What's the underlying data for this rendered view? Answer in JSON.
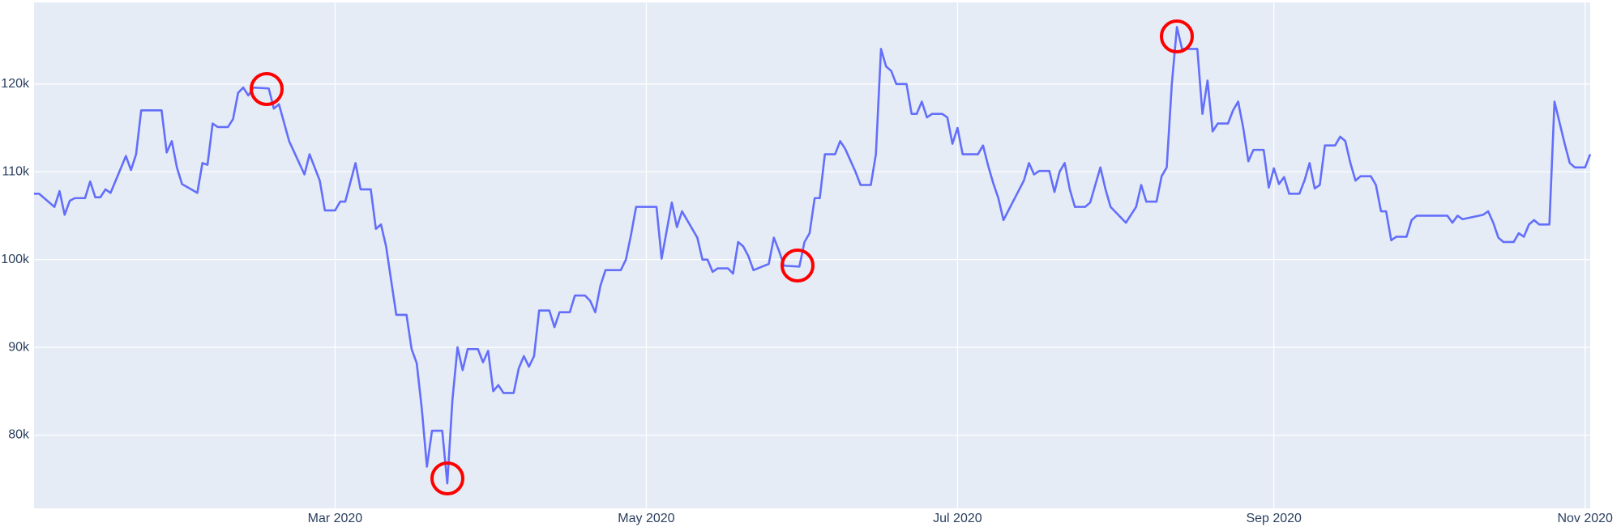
{
  "chart_data": {
    "type": "line",
    "color": "#636efa",
    "grid": true,
    "x": [
      "2020-01-02",
      "2020-01-03",
      "2020-01-06",
      "2020-01-07",
      "2020-01-08",
      "2020-01-09",
      "2020-01-10",
      "2020-01-12",
      "2020-01-13",
      "2020-01-14",
      "2020-01-15",
      "2020-01-16",
      "2020-01-17",
      "2020-01-20",
      "2020-01-21",
      "2020-01-22",
      "2020-01-23",
      "2020-01-27",
      "2020-01-28",
      "2020-01-29",
      "2020-01-30",
      "2020-01-31",
      "2020-02-03",
      "2020-02-04",
      "2020-02-05",
      "2020-02-06",
      "2020-02-07",
      "2020-02-09",
      "2020-02-10",
      "2020-02-11",
      "2020-02-12",
      "2020-02-13",
      "2020-02-14",
      "2020-02-17",
      "2020-02-18",
      "2020-02-19",
      "2020-02-21",
      "2020-02-24",
      "2020-02-25",
      "2020-02-27",
      "2020-02-28",
      "2020-03-01",
      "2020-03-02",
      "2020-03-03",
      "2020-03-05",
      "2020-03-06",
      "2020-03-08",
      "2020-03-09",
      "2020-03-10",
      "2020-03-11",
      "2020-03-13",
      "2020-03-15",
      "2020-03-16",
      "2020-03-17",
      "2020-03-18",
      "2020-03-19",
      "2020-03-20",
      "2020-03-22",
      "2020-03-23",
      "2020-03-24",
      "2020-03-25",
      "2020-03-26",
      "2020-03-27",
      "2020-03-29",
      "2020-03-30",
      "2020-03-31",
      "2020-04-01",
      "2020-04-02",
      "2020-04-03",
      "2020-04-05",
      "2020-04-06",
      "2020-04-07",
      "2020-04-08",
      "2020-04-09",
      "2020-04-10",
      "2020-04-12",
      "2020-04-13",
      "2020-04-14",
      "2020-04-16",
      "2020-04-17",
      "2020-04-19",
      "2020-04-20",
      "2020-04-21",
      "2020-04-22",
      "2020-04-23",
      "2020-04-26",
      "2020-04-27",
      "2020-04-28",
      "2020-04-29",
      "2020-05-03",
      "2020-05-04",
      "2020-05-06",
      "2020-05-07",
      "2020-05-08",
      "2020-05-11",
      "2020-05-12",
      "2020-05-13",
      "2020-05-14",
      "2020-05-15",
      "2020-05-17",
      "2020-05-18",
      "2020-05-19",
      "2020-05-20",
      "2020-05-21",
      "2020-05-22",
      "2020-05-25",
      "2020-05-26",
      "2020-05-27",
      "2020-05-28",
      "2020-05-31",
      "2020-06-01",
      "2020-06-02",
      "2020-06-03",
      "2020-06-04",
      "2020-06-05",
      "2020-06-07",
      "2020-06-08",
      "2020-06-09",
      "2020-06-11",
      "2020-06-12",
      "2020-06-14",
      "2020-06-15",
      "2020-06-16",
      "2020-06-17",
      "2020-06-18",
      "2020-06-19",
      "2020-06-21",
      "2020-06-22",
      "2020-06-23",
      "2020-06-24",
      "2020-06-25",
      "2020-06-26",
      "2020-06-28",
      "2020-06-29",
      "2020-06-30",
      "2020-07-01",
      "2020-07-02",
      "2020-07-05",
      "2020-07-06",
      "2020-07-07",
      "2020-07-08",
      "2020-07-09",
      "2020-07-10",
      "2020-07-14",
      "2020-07-15",
      "2020-07-16",
      "2020-07-17",
      "2020-07-19",
      "2020-07-20",
      "2020-07-21",
      "2020-07-22",
      "2020-07-23",
      "2020-07-24",
      "2020-07-26",
      "2020-07-27",
      "2020-07-29",
      "2020-07-30",
      "2020-07-31",
      "2020-08-03",
      "2020-08-05",
      "2020-08-06",
      "2020-08-07",
      "2020-08-09",
      "2020-08-10",
      "2020-08-11",
      "2020-08-12",
      "2020-08-13",
      "2020-08-14",
      "2020-08-17",
      "2020-08-18",
      "2020-08-19",
      "2020-08-20",
      "2020-08-21",
      "2020-08-23",
      "2020-08-24",
      "2020-08-25",
      "2020-08-26",
      "2020-08-27",
      "2020-08-28",
      "2020-08-30",
      "2020-08-31",
      "2020-09-01",
      "2020-09-02",
      "2020-09-03",
      "2020-09-04",
      "2020-09-06",
      "2020-09-07",
      "2020-09-08",
      "2020-09-09",
      "2020-09-10",
      "2020-09-11",
      "2020-09-13",
      "2020-09-14",
      "2020-09-15",
      "2020-09-16",
      "2020-09-17",
      "2020-09-18",
      "2020-09-20",
      "2020-09-21",
      "2020-09-22",
      "2020-09-23",
      "2020-09-24",
      "2020-09-25",
      "2020-09-27",
      "2020-09-28",
      "2020-09-29",
      "2020-10-05",
      "2020-10-06",
      "2020-10-07",
      "2020-10-08",
      "2020-10-12",
      "2020-10-13",
      "2020-10-14",
      "2020-10-15",
      "2020-10-16",
      "2020-10-18",
      "2020-10-19",
      "2020-10-20",
      "2020-10-21",
      "2020-10-22",
      "2020-10-23",
      "2020-10-25",
      "2020-10-26",
      "2020-10-27",
      "2020-10-28",
      "2020-10-29",
      "2020-10-30",
      "2020-11-01",
      "2020-11-02"
    ],
    "values": [
      107500,
      107500,
      106000,
      107800,
      105100,
      106700,
      107000,
      107000,
      108900,
      107100,
      107100,
      108000,
      107600,
      111800,
      110200,
      112000,
      117000,
      117000,
      112200,
      113500,
      110500,
      108600,
      107600,
      111000,
      110800,
      115500,
      115100,
      115100,
      116000,
      119000,
      119600,
      118700,
      119600,
      119500,
      117200,
      117700,
      113500,
      109700,
      112000,
      109000,
      105600,
      105600,
      106600,
      106600,
      111000,
      108000,
      108000,
      103500,
      104000,
      101500,
      93700,
      93700,
      89800,
      88200,
      83000,
      76400,
      80500,
      80500,
      74500,
      84000,
      90000,
      87400,
      89800,
      89800,
      88300,
      89600,
      85000,
      85700,
      84800,
      84800,
      87600,
      89000,
      87800,
      89000,
      94200,
      94200,
      92300,
      94000,
      94000,
      95900,
      95900,
      95300,
      94000,
      97000,
      98800,
      98800,
      100000,
      102800,
      106000,
      106000,
      100100,
      106500,
      103700,
      105500,
      102500,
      100000,
      100000,
      98600,
      99000,
      99000,
      98400,
      102000,
      101500,
      100400,
      98800,
      99500,
      102500,
      101000,
      99300,
      99200,
      102000,
      103000,
      107000,
      107000,
      112000,
      112000,
      113500,
      112600,
      110000,
      108500,
      108500,
      112000,
      124000,
      122000,
      121500,
      120000,
      120000,
      116600,
      116600,
      118000,
      116200,
      116600,
      116600,
      116200,
      113200,
      115000,
      112000,
      112000,
      113000,
      110700,
      108700,
      107000,
      104500,
      109000,
      111000,
      109700,
      110100,
      110100,
      107700,
      110000,
      111000,
      108000,
      106000,
      106000,
      106500,
      110500,
      108000,
      106000,
      104200,
      106000,
      108500,
      106600,
      106600,
      109500,
      110500,
      120000,
      126500,
      124000,
      124000,
      116600,
      120400,
      114600,
      115500,
      115500,
      117000,
      118000,
      115000,
      111200,
      112500,
      112500,
      108200,
      110400,
      108600,
      109400,
      107500,
      107500,
      109000,
      111000,
      108100,
      108500,
      113000,
      113000,
      114000,
      113500,
      111000,
      109000,
      109500,
      109500,
      108500,
      105500,
      105500,
      102200,
      102600,
      102600,
      104500,
      105000,
      105000,
      104200,
      105000,
      104600,
      105100,
      105500,
      104200,
      102500,
      102000,
      102000,
      103000,
      102600,
      104000,
      104500,
      104000,
      104000,
      118000,
      115600,
      113200,
      111000,
      110500,
      110500,
      112000
    ],
    "xlim": [
      "2020-01-02",
      "2020-11-02"
    ],
    "xticks": [
      {
        "value": "2020-03-01",
        "label": "Mar 2020"
      },
      {
        "value": "2020-05-01",
        "label": "May 2020"
      },
      {
        "value": "2020-07-01",
        "label": "Jul 2020"
      },
      {
        "value": "2020-09-01",
        "label": "Sep 2020"
      },
      {
        "value": "2020-11-01",
        "label": "Nov 2020"
      }
    ],
    "ylim": [
      71650,
      129300
    ],
    "yticks": [
      {
        "value": 80000,
        "label": "80k"
      },
      {
        "value": 90000,
        "label": "90k"
      },
      {
        "value": 100000,
        "label": "100k"
      },
      {
        "value": 110000,
        "label": "110k"
      },
      {
        "value": 120000,
        "label": "120k"
      }
    ]
  }
}
